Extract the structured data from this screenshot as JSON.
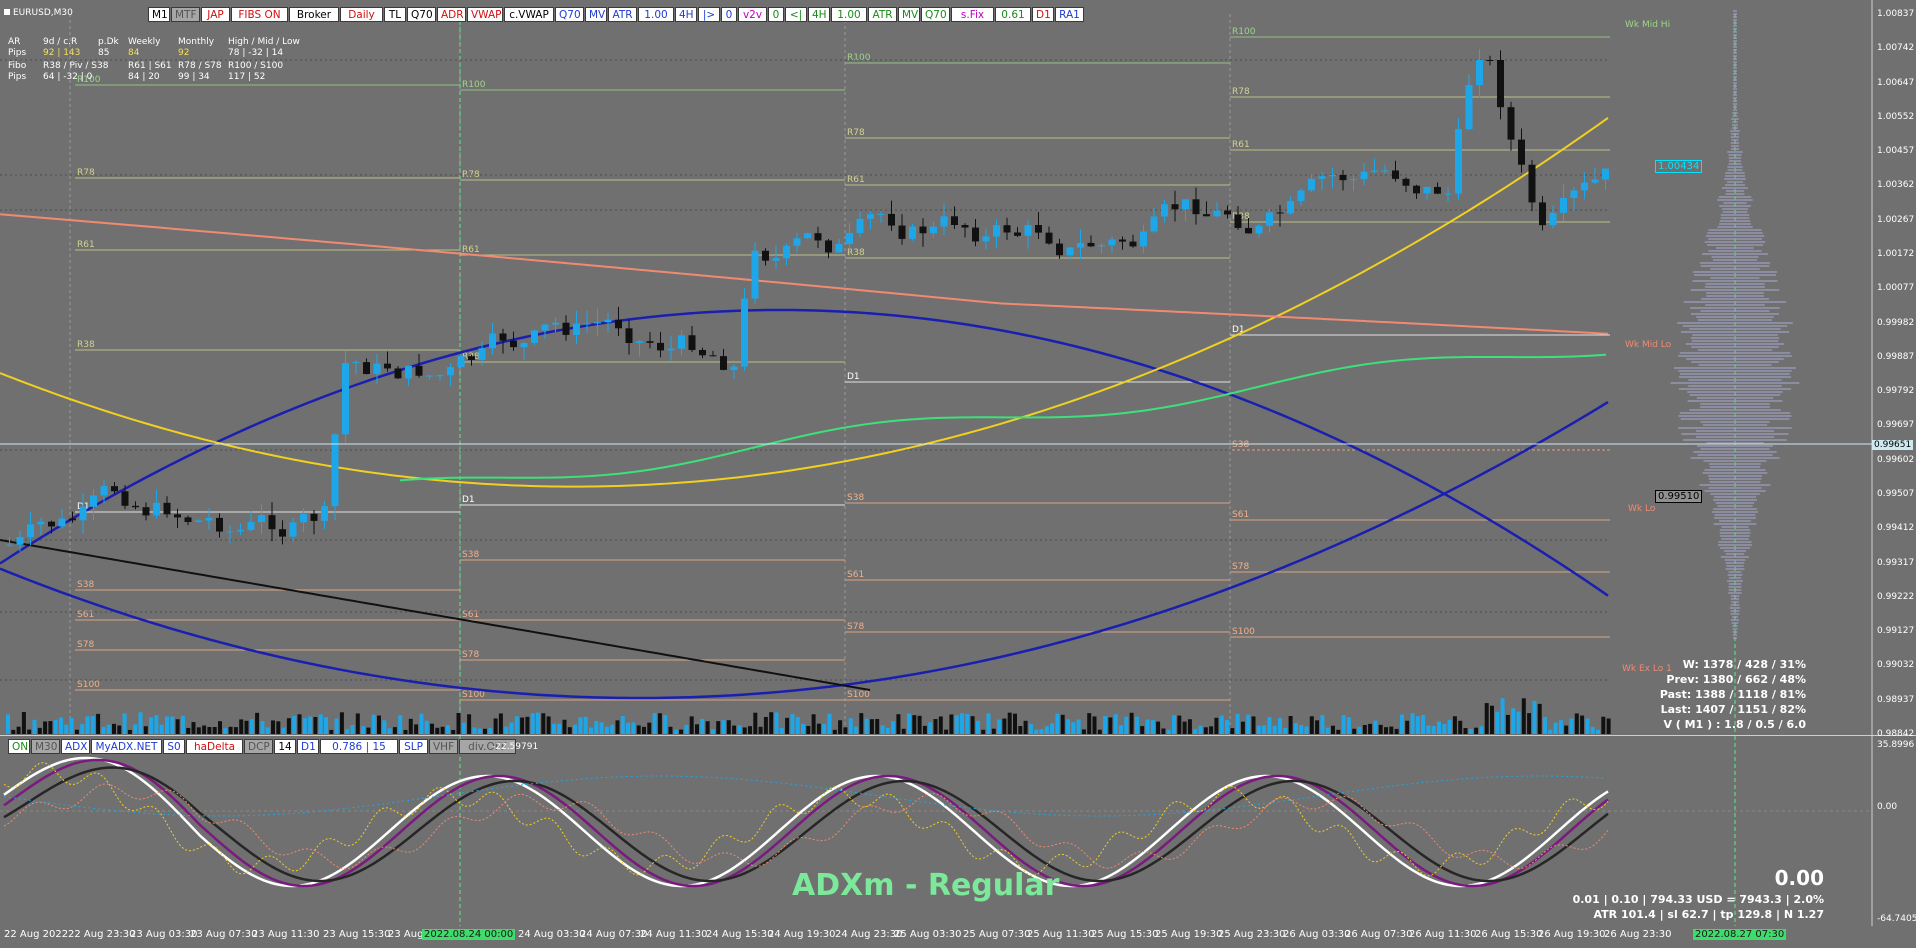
{
  "symbol": "EURUSD,M30",
  "toolbar": [
    {
      "label": "M1",
      "bg": "#ffffff",
      "fg": "#000000"
    },
    {
      "label": "MTF",
      "bg": "#a6a6a6",
      "fg": "#555555"
    },
    {
      "label": "JAP",
      "bg": "#ffffff",
      "fg": "#d01010"
    },
    {
      "label": "FIBS ON",
      "bg": "#ffffff",
      "fg": "#d01010"
    },
    {
      "label": "Broker",
      "bg": "#ffffff",
      "fg": "#000000"
    },
    {
      "label": "Daily",
      "bg": "#ffffff",
      "fg": "#d01010"
    },
    {
      "label": "TL",
      "bg": "#ffffff",
      "fg": "#000000"
    },
    {
      "label": "Q70",
      "bg": "#ffffff",
      "fg": "#000000"
    },
    {
      "label": "ADR",
      "bg": "#ffffff",
      "fg": "#d01010"
    },
    {
      "label": "VWAP",
      "bg": "#ffffff",
      "fg": "#d01010"
    },
    {
      "label": "c.VWAP",
      "bg": "#ffffff",
      "fg": "#000000"
    },
    {
      "label": "Q70",
      "bg": "#ffffff",
      "fg": "#1e3cd0"
    },
    {
      "label": "MV",
      "bg": "#ffffff",
      "fg": "#1e3cd0"
    },
    {
      "label": "ATR",
      "bg": "#ffffff",
      "fg": "#1e3cd0"
    },
    {
      "label": "1.00",
      "bg": "#ffffff",
      "fg": "#1e3cd0"
    },
    {
      "label": "4H",
      "bg": "#ffffff",
      "fg": "#1e3cd0"
    },
    {
      "label": "|>",
      "bg": "#ffffff",
      "fg": "#1e3cd0"
    },
    {
      "label": "0",
      "bg": "#ffffff",
      "fg": "#1e3cd0"
    },
    {
      "label": "v2v",
      "bg": "#ffffff",
      "fg": "#c000c0"
    },
    {
      "label": "0",
      "bg": "#ffffff",
      "fg": "#1a8a1a"
    },
    {
      "label": "<|",
      "bg": "#ffffff",
      "fg": "#1a8a1a"
    },
    {
      "label": "4H",
      "bg": "#ffffff",
      "fg": "#1a8a1a"
    },
    {
      "label": "1.00",
      "bg": "#ffffff",
      "fg": "#1a8a1a"
    },
    {
      "label": "ATR",
      "bg": "#ffffff",
      "fg": "#1a8a1a"
    },
    {
      "label": "MV",
      "bg": "#ffffff",
      "fg": "#1a8a1a"
    },
    {
      "label": "Q70",
      "bg": "#ffffff",
      "fg": "#1a8a1a"
    },
    {
      "label": "s.Fix",
      "bg": "#ffffff",
      "fg": "#c000c0"
    },
    {
      "label": "0.61",
      "bg": "#ffffff",
      "fg": "#1a8a1a"
    },
    {
      "label": "D1",
      "bg": "#ffffff",
      "fg": "#d01010"
    },
    {
      "label": "RA1",
      "bg": "#ffffff",
      "fg": "#1e3cd0"
    }
  ],
  "info_panel": {
    "row1": [
      "AR",
      "9d / c.R",
      "p.Dk",
      "Weekly",
      "Monthly",
      "High / Mid / Low"
    ],
    "row2": [
      "Pips",
      "92 | 143",
      "85",
      "84",
      "92",
      "78 | -32 | 14"
    ],
    "row3": [
      "Fibo",
      "R38 / Piv / S38",
      "R61 | S61",
      "R78 / S78",
      "R100 / S100"
    ],
    "row4": [
      "Pips",
      "64 | -32 | 0",
      "84 | 20",
      "99 | 34",
      "117 | 52"
    ]
  },
  "price_axis": [
    "1.00837",
    "1.00742",
    "1.00647",
    "1.00552",
    "1.00457",
    "1.00362",
    "1.00267",
    "1.00172",
    "1.00077",
    "0.99982",
    "0.99887",
    "0.99792",
    "0.99697",
    "0.99602",
    "0.99507",
    "0.99412",
    "0.99317",
    "0.99222",
    "0.99127",
    "0.99032",
    "0.98937",
    "0.98842"
  ],
  "current_price": "0.99651",
  "price_marker_1": "1.00434",
  "price_marker_2": "0.99510",
  "week_labels": {
    "hi": "Wk Mid Hi",
    "mid": "Wk Mid Lo",
    "lo": "Wk Lo",
    "exlo": "Wk Ex Lo 1"
  },
  "stats": {
    "w": "W: 1378 / 428 / 31%",
    "prev": "Prev: 1380 / 662 / 48%",
    "past": "Past: 1388 / 1118 / 81%",
    "last": "Last: 1407 / 1151 / 82%",
    "v": "V ( M1 ) : 1.8 / 0.5 / 6.0"
  },
  "indicator_toolbar": [
    {
      "label": "ON",
      "bg": "#ffffff",
      "fg": "#1a8a1a"
    },
    {
      "label": "M30",
      "bg": "#a6a6a6",
      "fg": "#555555"
    },
    {
      "label": "ADX",
      "bg": "#ffffff",
      "fg": "#1e3cd0"
    },
    {
      "label": "MyADX.NET",
      "bg": "#ffffff",
      "fg": "#1e3cd0"
    },
    {
      "label": "S0",
      "bg": "#ffffff",
      "fg": "#1e3cd0"
    },
    {
      "label": "haDelta",
      "bg": "#ffffff",
      "fg": "#d01010"
    },
    {
      "label": "DCP",
      "bg": "#a6a6a6",
      "fg": "#555555"
    },
    {
      "label": "14",
      "bg": "#ffffff",
      "fg": "#000000"
    },
    {
      "label": "D1",
      "bg": "#ffffff",
      "fg": "#1e3cd0"
    },
    {
      "label": "0.786 | 15",
      "bg": "#ffffff",
      "fg": "#1e3cd0"
    },
    {
      "label": "SLP",
      "bg": "#ffffff",
      "fg": "#1e3cd0"
    },
    {
      "label": "VHF",
      "bg": "#a6a6a6",
      "fg": "#555555"
    },
    {
      "label": "div.OFF",
      "bg": "#a6a6a6",
      "fg": "#555555"
    }
  ],
  "indicator_value": "-22.59791",
  "indicator_axis": [
    "35.8996",
    "0.00",
    "-64.7405"
  ],
  "indicator_title": "ADXm - Regular",
  "indicator_big_value": "0.00",
  "indicator_line2": "0.01  |  0.10  |  794.33 USD = 7943.3  |  2.0%",
  "indicator_line3": "ATR 101.4  |  sl 62.7  |  tp 129.8  |  N 1.27",
  "time_axis": [
    "22 Aug 2022",
    "22 Aug 23:30",
    "23 Aug 03:30",
    "23 Aug 07:30",
    "23 Aug 11:30",
    "23 Aug 15:30",
    "23 Aug",
    "2022.08.24 00:00",
    "24 Aug 03:30",
    "24 Aug 07:30",
    "24 Aug 11:30",
    "24 Aug 15:30",
    "24 Aug 19:30",
    "24 Aug 23:30",
    "25 Aug 03:30",
    "25 Aug 07:30",
    "25 Aug 11:30",
    "25 Aug 15:30",
    "25 Aug 19:30",
    "25 Aug 23:30",
    "26 Aug 03:30",
    "26 Aug 07:30",
    "26 Aug 11:30",
    "26 Aug 15:30",
    "26 Aug 19:30",
    "26 Aug 23:30",
    "2022.08.27 07:30"
  ],
  "fib_labels": [
    "R100",
    "R78",
    "R61",
    "R38",
    "D1",
    "S38",
    "S61",
    "S78",
    "S100"
  ],
  "colors": {
    "bg": "#707070",
    "bull": "#1ea7e8",
    "bear": "#111111",
    "ma_blue": "#1a1fb0",
    "ma_yellow": "#f0d020",
    "ma_salmon": "#f08a70",
    "ma_green": "#3ee07a",
    "adx_white": "#ffffff",
    "adx_purple": "#7a1a80",
    "adx_black": "#262626"
  }
}
